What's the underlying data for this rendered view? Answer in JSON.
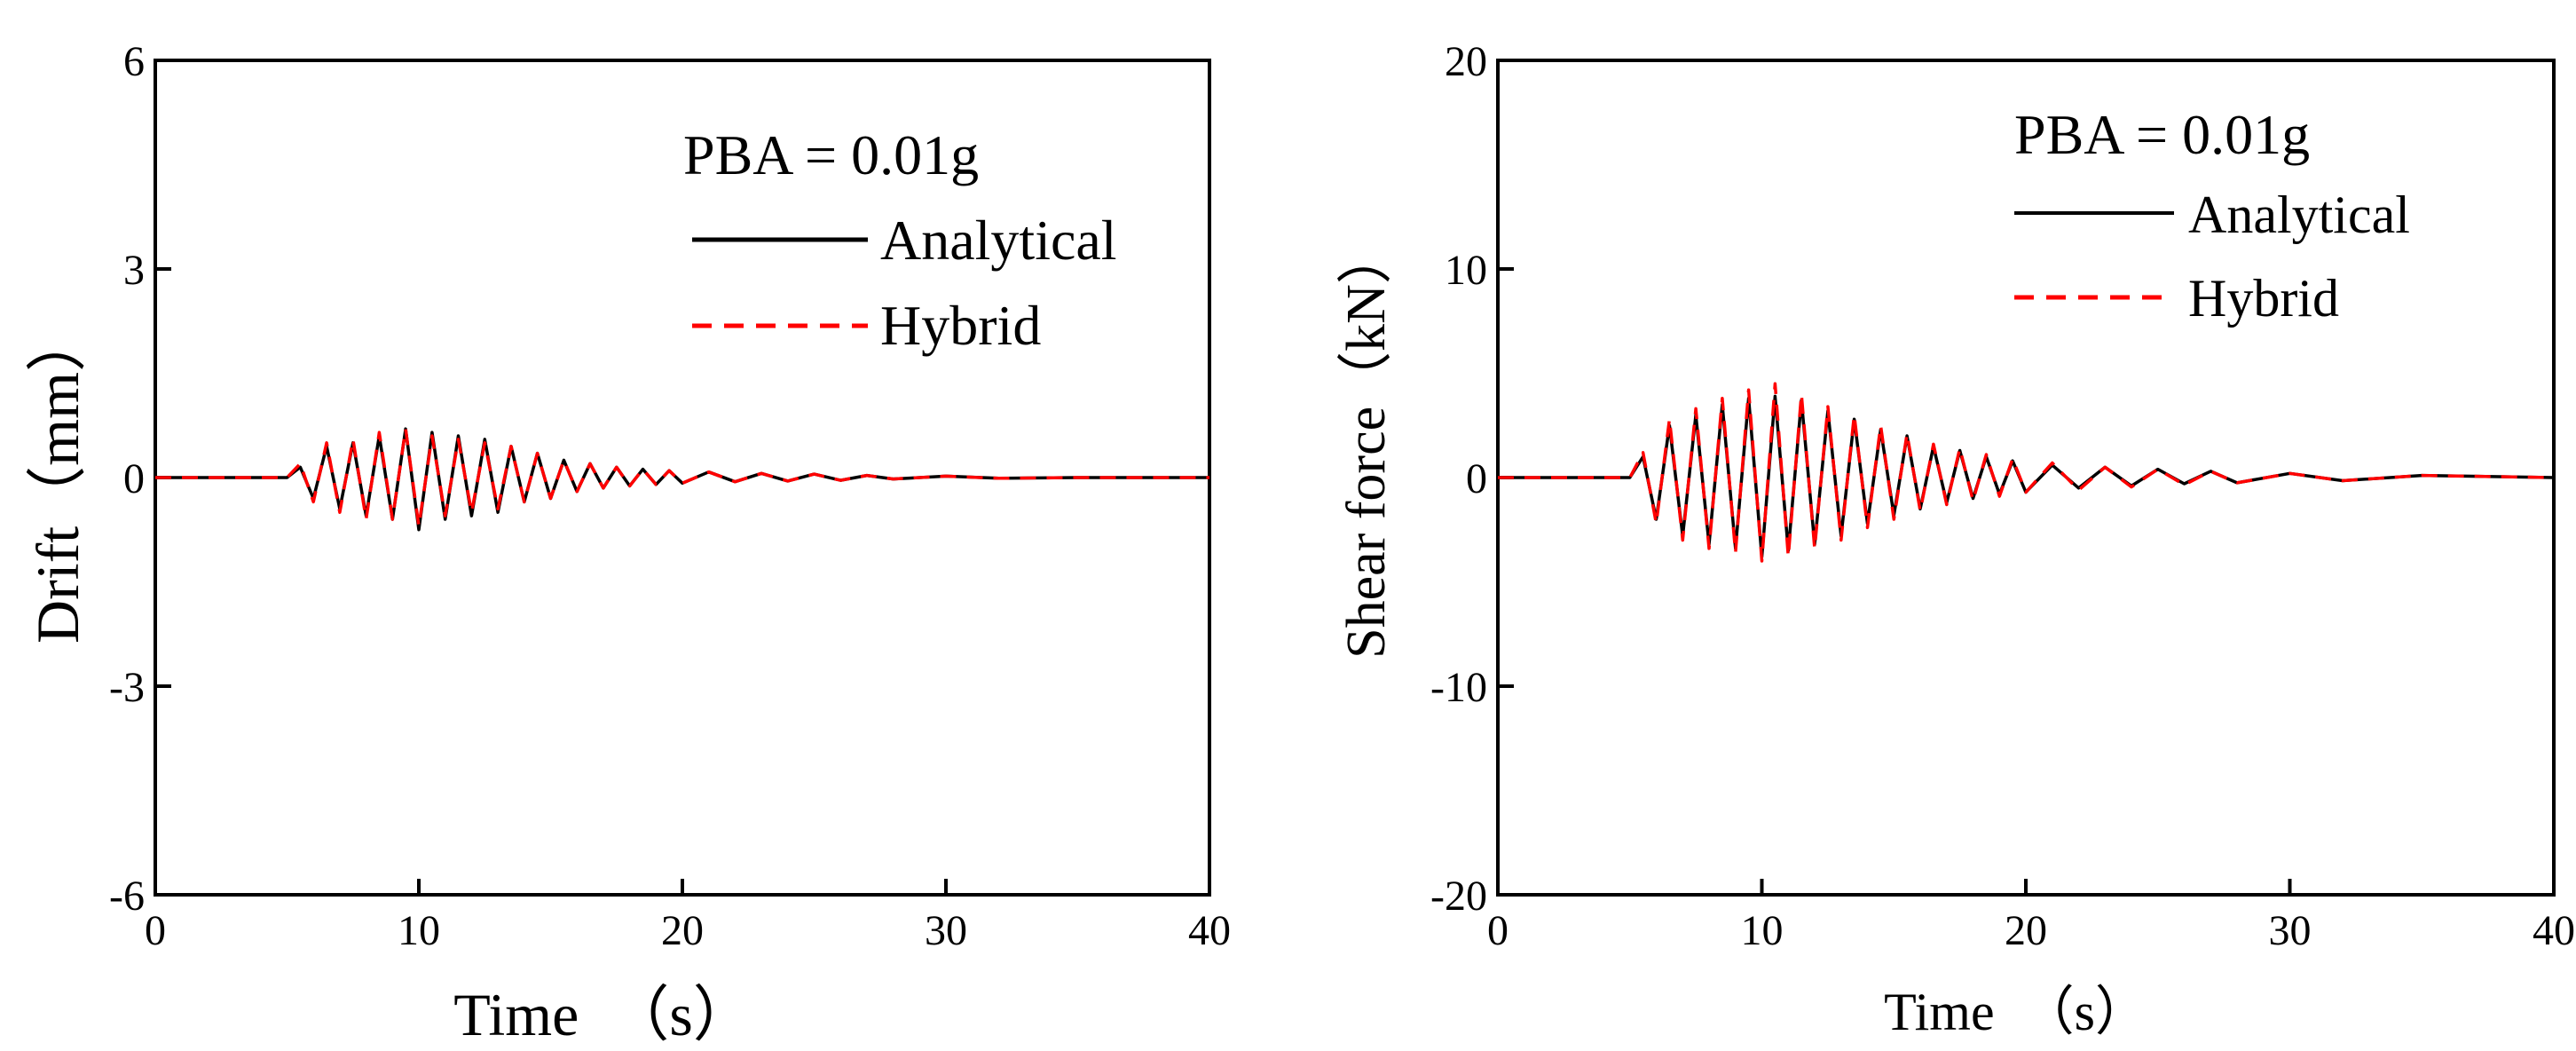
{
  "colors": {
    "analytical": "#000000",
    "hybrid": "#ff0000"
  },
  "chart_data": [
    {
      "type": "line",
      "xlabel": "Time　（s）",
      "ylabel": "Drift（mm）",
      "xlim": [
        0,
        40
      ],
      "ylim": [
        -6,
        6
      ],
      "xticks": [
        0,
        10,
        20,
        30,
        40
      ],
      "xtick_labels": [
        "0",
        "10",
        "20",
        "30",
        "40"
      ],
      "yticks": [
        -6,
        -3,
        0,
        3,
        6
      ],
      "ytick_labels": [
        "-6",
        "-3",
        "0",
        "3",
        "6"
      ],
      "legend_placement": "top-right",
      "annotation": "PBA = 0.01g",
      "series": [
        {
          "name": "Analytical",
          "style": "solid",
          "x": [
            0,
            5,
            5.5,
            6,
            6.5,
            7,
            7.5,
            8,
            8.5,
            9,
            9.5,
            10,
            10.5,
            11,
            11.5,
            12,
            12.5,
            13,
            13.5,
            14,
            14.5,
            15,
            15.5,
            16,
            16.5,
            17,
            17.5,
            18,
            18.5,
            19,
            19.5,
            20,
            21,
            22,
            23,
            24,
            25,
            26,
            27,
            28,
            30,
            32,
            35,
            40
          ],
          "y": [
            0,
            0,
            0.15,
            -0.3,
            0.45,
            -0.45,
            0.5,
            -0.55,
            0.6,
            -0.6,
            0.7,
            -0.75,
            0.65,
            -0.6,
            0.6,
            -0.55,
            0.55,
            -0.5,
            0.45,
            -0.35,
            0.35,
            -0.3,
            0.25,
            -0.2,
            0.2,
            -0.15,
            0.15,
            -0.12,
            0.12,
            -0.1,
            0.1,
            -0.08,
            0.08,
            -0.06,
            0.06,
            -0.05,
            0.05,
            -0.04,
            0.03,
            -0.02,
            0.02,
            -0.01,
            0,
            0
          ]
        },
        {
          "name": "Hybrid",
          "style": "dashed",
          "x": [
            0,
            5,
            5.5,
            6,
            6.5,
            7,
            7.5,
            8,
            8.5,
            9,
            9.5,
            10,
            10.5,
            11,
            11.5,
            12,
            12.5,
            13,
            13.5,
            14,
            14.5,
            15,
            15.5,
            16,
            16.5,
            17,
            17.5,
            18,
            18.5,
            19,
            19.5,
            20,
            21,
            22,
            23,
            24,
            25,
            26,
            27,
            28,
            30,
            32,
            35,
            40
          ],
          "y": [
            0,
            0,
            0.2,
            -0.35,
            0.5,
            -0.5,
            0.55,
            -0.6,
            0.65,
            -0.6,
            0.7,
            -0.7,
            0.6,
            -0.55,
            0.55,
            -0.5,
            0.5,
            -0.45,
            0.45,
            -0.35,
            0.35,
            -0.3,
            0.25,
            -0.2,
            0.2,
            -0.15,
            0.15,
            -0.12,
            0.12,
            -0.1,
            0.1,
            -0.08,
            0.08,
            -0.06,
            0.06,
            -0.05,
            0.05,
            -0.04,
            0.03,
            -0.02,
            0.02,
            -0.01,
            0,
            0
          ]
        }
      ]
    },
    {
      "type": "line",
      "xlabel": "Time　（s）",
      "ylabel": "Shear force（kN）",
      "xlim": [
        0,
        40
      ],
      "ylim": [
        -20,
        20
      ],
      "xticks": [
        0,
        10,
        20,
        30,
        40
      ],
      "xtick_labels": [
        "0",
        "10",
        "20",
        "30",
        "40"
      ],
      "yticks": [
        -20,
        -10,
        0,
        10,
        20
      ],
      "ytick_labels": [
        "-20",
        "-10",
        "0",
        "10",
        "20"
      ],
      "legend_placement": "top-right",
      "annotation": "PBA = 0.01g",
      "series": [
        {
          "name": "Analytical",
          "style": "solid",
          "x": [
            0,
            5,
            5.5,
            6,
            6.5,
            7,
            7.5,
            8,
            8.5,
            9,
            9.5,
            10,
            10.5,
            11,
            11.5,
            12,
            12.5,
            13,
            13.5,
            14,
            14.5,
            15,
            15.5,
            16,
            16.5,
            17,
            17.5,
            18,
            18.5,
            19,
            19.5,
            20,
            21,
            22,
            23,
            24,
            25,
            26,
            27,
            28,
            30,
            32,
            35,
            40
          ],
          "y": [
            0,
            0,
            1.0,
            -2.0,
            2.5,
            -2.8,
            3.0,
            -3.2,
            3.5,
            -3.4,
            3.8,
            -3.8,
            3.9,
            -3.5,
            3.7,
            -3.2,
            3.2,
            -2.8,
            2.8,
            -2.2,
            2.3,
            -1.8,
            2.0,
            -1.5,
            1.5,
            -1.2,
            1.3,
            -1.0,
            1.0,
            -0.8,
            0.8,
            -0.7,
            0.6,
            -0.5,
            0.5,
            -0.4,
            0.4,
            -0.3,
            0.3,
            -0.25,
            0.2,
            -0.15,
            0.1,
            0
          ]
        },
        {
          "name": "Hybrid",
          "style": "dashed",
          "x": [
            0,
            5,
            5.5,
            6,
            6.5,
            7,
            7.5,
            8,
            8.5,
            9,
            9.5,
            10,
            10.5,
            11,
            11.5,
            12,
            12.5,
            13,
            13.5,
            14,
            14.5,
            15,
            15.5,
            16,
            16.5,
            17,
            17.5,
            18,
            18.5,
            19,
            19.5,
            20,
            21,
            22,
            23,
            24,
            25,
            26,
            27,
            28,
            30,
            32,
            35,
            40
          ],
          "y": [
            0,
            0,
            1.2,
            -2.2,
            2.8,
            -3.0,
            3.3,
            -3.4,
            3.8,
            -3.6,
            4.2,
            -4.0,
            4.5,
            -3.8,
            4.0,
            -3.4,
            3.4,
            -3.0,
            3.0,
            -2.4,
            2.5,
            -2.0,
            2.1,
            -1.6,
            1.6,
            -1.3,
            1.4,
            -1.1,
            1.1,
            -0.9,
            0.9,
            -0.7,
            0.7,
            -0.6,
            0.5,
            -0.45,
            0.4,
            -0.35,
            0.3,
            -0.25,
            0.2,
            -0.15,
            0.1,
            0
          ]
        }
      ]
    }
  ]
}
